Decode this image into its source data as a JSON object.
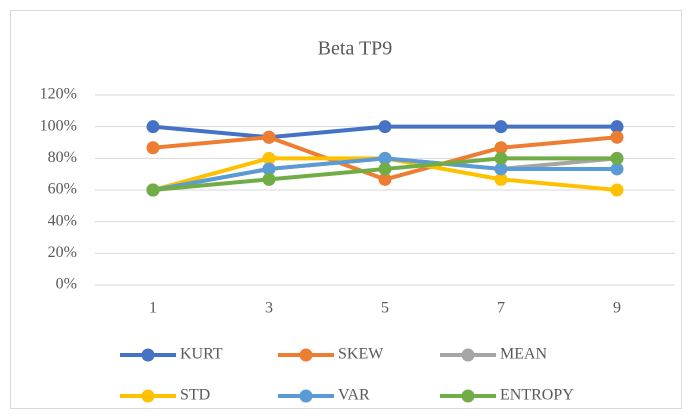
{
  "chart_data": {
    "type": "line",
    "title": "Beta TP9",
    "categories": [
      "1",
      "3",
      "5",
      "7",
      "9"
    ],
    "series": [
      {
        "name": "KURT",
        "color": "#4472c4",
        "values": [
          100,
          93.3,
          100,
          100,
          100
        ]
      },
      {
        "name": "SKEW",
        "color": "#ed7d31",
        "values": [
          86.7,
          93.3,
          66.7,
          86.7,
          93.3
        ]
      },
      {
        "name": "MEAN",
        "color": "#a5a5a5",
        "values": [
          60,
          73.3,
          80,
          73.3,
          80
        ]
      },
      {
        "name": "STD",
        "color": "#ffc000",
        "values": [
          60,
          80,
          80,
          66.7,
          60
        ]
      },
      {
        "name": "VAR",
        "color": "#5b9bd5",
        "values": [
          60,
          73.3,
          80,
          73.3,
          73.3
        ]
      },
      {
        "name": "ENTROPY",
        "color": "#70ad47",
        "values": [
          60,
          66.7,
          73.3,
          80,
          80
        ]
      }
    ],
    "ylim": [
      0,
      120
    ],
    "yticks": [
      {
        "value": 0,
        "label": "0%"
      },
      {
        "value": 20,
        "label": "20%"
      },
      {
        "value": 40,
        "label": "40%"
      },
      {
        "value": 60,
        "label": "60%"
      },
      {
        "value": 80,
        "label": "80%"
      },
      {
        "value": 100,
        "label": "100%"
      },
      {
        "value": 120,
        "label": "120%"
      }
    ],
    "grid": true,
    "legend": "bottom"
  }
}
